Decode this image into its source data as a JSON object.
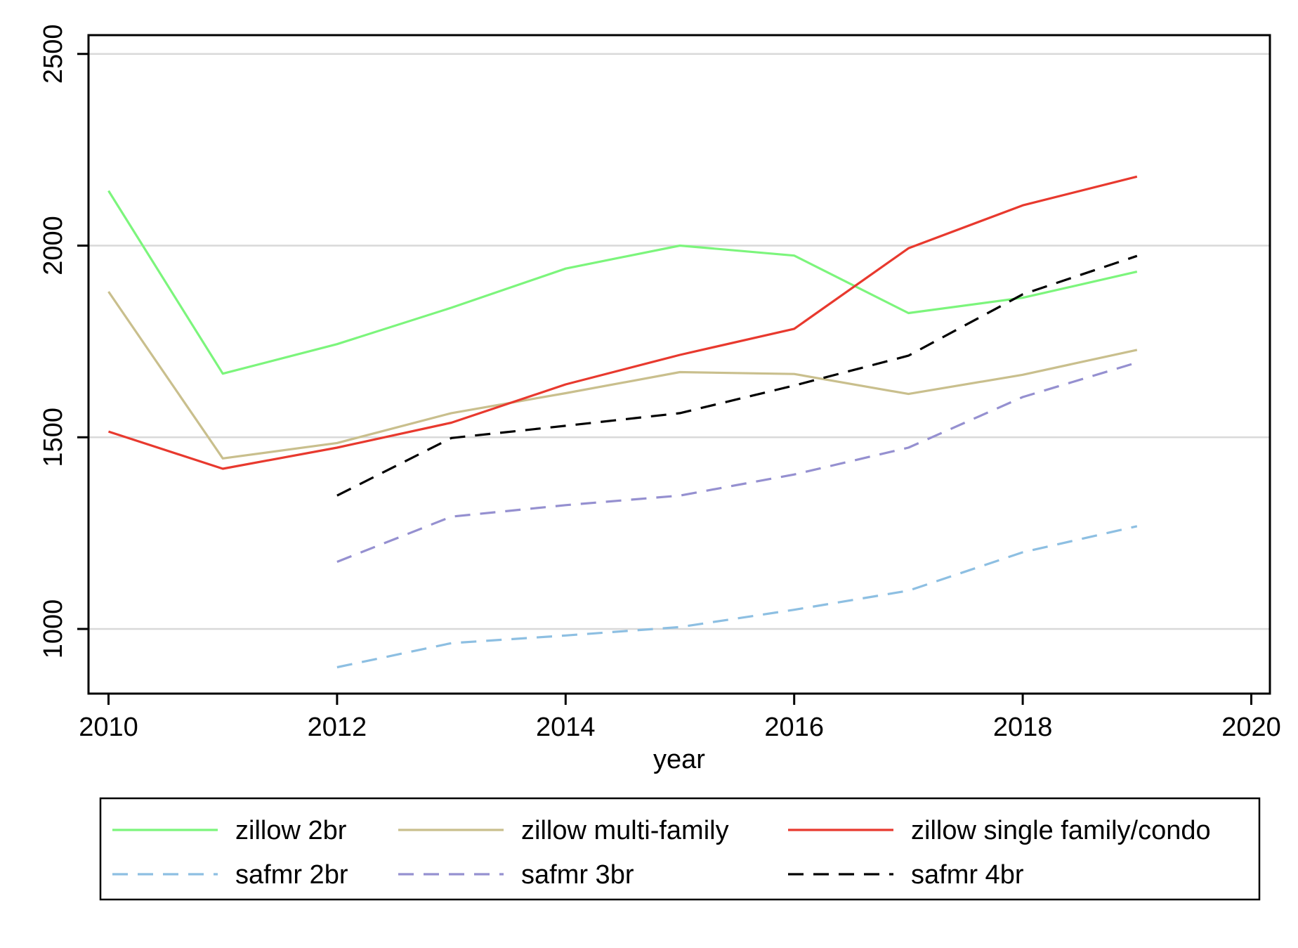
{
  "chart_data": {
    "type": "line",
    "xlabel": "year",
    "ylabel": "",
    "xlim": [
      2009.9,
      2020.2
    ],
    "ylim": [
      845,
      2555
    ],
    "x_ticks": [
      "2010",
      "2012",
      "2014",
      "2016",
      "2018",
      "2020"
    ],
    "y_ticks": [
      "1000",
      "1500",
      "2000",
      "2500"
    ],
    "grid": "horizontal",
    "legend_position": "bottom",
    "series": [
      {
        "name": "zillow 2br",
        "color": "#7cf57c",
        "dash": "solid",
        "x": [
          2010,
          2011,
          2012,
          2013,
          2014,
          2015,
          2016,
          2017,
          2018,
          2019
        ],
        "y": [
          2143,
          1666,
          1743,
          1838,
          1940,
          2000,
          1974,
          1824,
          1864,
          1932
        ]
      },
      {
        "name": "zillow multi-family",
        "color": "#c9bf8d",
        "dash": "solid",
        "x": [
          2010,
          2011,
          2012,
          2013,
          2014,
          2015,
          2016,
          2017,
          2018,
          2019
        ],
        "y": [
          1880,
          1445,
          1485,
          1563,
          1615,
          1670,
          1665,
          1613,
          1663,
          1728
        ]
      },
      {
        "name": "zillow single family/condo",
        "color": "#e8392e",
        "dash": "solid",
        "x": [
          2010,
          2011,
          2012,
          2013,
          2014,
          2015,
          2016,
          2017,
          2018,
          2019
        ],
        "y": [
          1515,
          1418,
          1473,
          1538,
          1638,
          1715,
          1783,
          1993,
          2105,
          2180
        ]
      },
      {
        "name": "safmr 2br",
        "color": "#8dbfe2",
        "dash": "dashed",
        "x": [
          2012,
          2013,
          2014,
          2015,
          2016,
          2017,
          2018,
          2019
        ],
        "y": [
          900,
          963,
          983,
          1005,
          1050,
          1100,
          1200,
          1268
        ]
      },
      {
        "name": "safmr 3br",
        "color": "#9590d0",
        "dash": "dashed",
        "x": [
          2012,
          2013,
          2014,
          2015,
          2016,
          2017,
          2018,
          2019
        ],
        "y": [
          1175,
          1293,
          1323,
          1348,
          1403,
          1473,
          1605,
          1695
        ]
      },
      {
        "name": "safmr 4br",
        "color": "#000000",
        "dash": "dashed",
        "x": [
          2012,
          2013,
          2014,
          2015,
          2016,
          2017,
          2018,
          2019
        ],
        "y": [
          1348,
          1498,
          1530,
          1563,
          1635,
          1713,
          1873,
          1973
        ]
      }
    ]
  }
}
